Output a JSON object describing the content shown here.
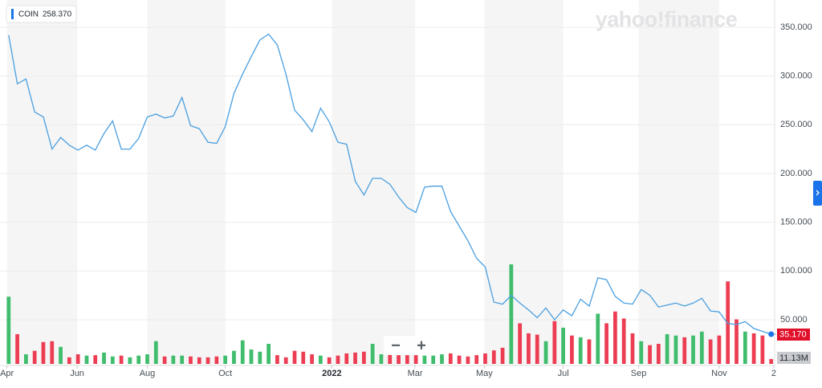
{
  "chart_data": {
    "type": "line",
    "legend": {
      "symbol": "COIN",
      "value": "258.370"
    },
    "watermark": "yahoo!finance",
    "color": "#4a9fe0",
    "values": [
      342,
      292,
      297,
      263,
      258,
      225,
      237,
      229,
      224,
      229,
      224,
      241,
      254,
      225,
      225,
      236,
      258,
      261,
      257,
      259,
      278,
      249,
      246,
      232,
      231,
      248,
      282,
      302,
      320,
      337,
      343,
      332,
      302,
      265,
      255,
      243,
      267,
      253,
      232,
      230,
      192,
      178,
      195,
      195,
      189,
      176,
      165,
      160,
      186,
      187,
      187,
      161,
      146,
      131,
      113,
      104,
      68,
      66,
      75,
      67,
      60,
      52,
      62,
      50,
      60,
      54,
      71,
      64,
      93,
      91,
      74,
      67,
      66,
      81,
      75,
      63,
      65,
      67,
      64,
      67,
      72,
      59,
      58,
      46,
      45,
      48,
      41,
      38,
      35.17
    ],
    "last_price": {
      "value": 35.17,
      "label": "35.170"
    },
    "volume": {
      "values": [
        154,
        68,
        22,
        30,
        50,
        52,
        39,
        15,
        22,
        19,
        20,
        26,
        17,
        19,
        15,
        19,
        22,
        52,
        17,
        19,
        19,
        17,
        15,
        15,
        17,
        19,
        30,
        54,
        33,
        28,
        46,
        20,
        15,
        30,
        28,
        22,
        19,
        15,
        19,
        24,
        26,
        28,
        46,
        22,
        22,
        20,
        20,
        20,
        19,
        19,
        22,
        24,
        19,
        17,
        20,
        24,
        31,
        37,
        228,
        93,
        70,
        67,
        52,
        98,
        83,
        65,
        61,
        56,
        115,
        93,
        120,
        104,
        70,
        52,
        43,
        46,
        68,
        65,
        61,
        65,
        74,
        56,
        65,
        189,
        102,
        74,
        70,
        65,
        11.13
      ],
      "last_label": "11.13M",
      "ylim": [
        0,
        230
      ],
      "up_color": "#3fbd6c",
      "down_color": "#ec3d53"
    },
    "xlim": [
      -1,
      88.4
    ],
    "xticks": [
      {
        "value": -0.2,
        "label": "Apr"
      },
      {
        "value": 7.9,
        "label": "Jun"
      },
      {
        "value": 16,
        "label": "Aug"
      },
      {
        "value": 25,
        "label": "Oct"
      },
      {
        "value": 37.3,
        "label": "2022"
      },
      {
        "value": 46.9,
        "label": "Mar"
      },
      {
        "value": 54.9,
        "label": "May"
      },
      {
        "value": 64,
        "label": "Jul"
      },
      {
        "value": 72.7,
        "label": "Sep"
      },
      {
        "value": 82,
        "label": "Nov"
      },
      {
        "value": 88.3,
        "label": "2"
      }
    ],
    "ylim": [
      3,
      378
    ],
    "yticks": [
      {
        "value": 50,
        "label": "50.000"
      },
      {
        "value": 100,
        "label": "100.000"
      },
      {
        "value": 150,
        "label": "150.000"
      },
      {
        "value": 200,
        "label": "200.000"
      },
      {
        "value": 250,
        "label": "250.000"
      },
      {
        "value": 300,
        "label": "300.000"
      },
      {
        "value": 350,
        "label": "350.000"
      }
    ],
    "grid": true,
    "zoom": {
      "out": "−",
      "in": "+"
    }
  }
}
